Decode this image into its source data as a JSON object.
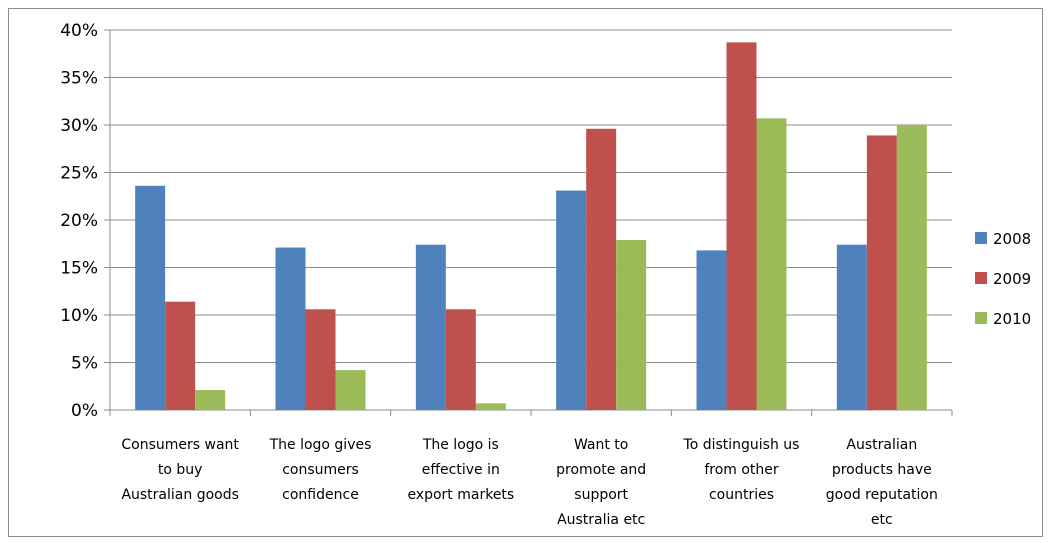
{
  "chart_data": {
    "type": "bar",
    "categories": [
      [
        "Consumers want",
        "to buy",
        "Australian goods"
      ],
      [
        "The logo gives",
        "consumers",
        "confidence"
      ],
      [
        "The logo is",
        "effective in",
        "export markets"
      ],
      [
        "Want to",
        "promote and",
        "support",
        "Australia etc"
      ],
      [
        "To distinguish us",
        "from other",
        "countries"
      ],
      [
        "Australian",
        "products have",
        "good reputation",
        "etc"
      ]
    ],
    "series": [
      {
        "name": "2008",
        "color": "#4f81bd",
        "values": [
          23.6,
          17.1,
          17.4,
          23.1,
          16.8,
          17.4
        ]
      },
      {
        "name": "2009",
        "color": "#c0504d",
        "values": [
          11.4,
          10.6,
          10.6,
          29.6,
          38.7,
          28.9
        ]
      },
      {
        "name": "2010",
        "color": "#9bbb59",
        "values": [
          2.1,
          4.2,
          0.7,
          17.9,
          30.7,
          30.0
        ]
      }
    ],
    "yticks": [
      "0%",
      "5%",
      "10%",
      "15%",
      "20%",
      "25%",
      "30%",
      "35%",
      "40%"
    ],
    "ylim": [
      0,
      40
    ],
    "ystep": 5,
    "grid": true,
    "legend": "right",
    "title": "",
    "xlabel": "",
    "ylabel": ""
  }
}
